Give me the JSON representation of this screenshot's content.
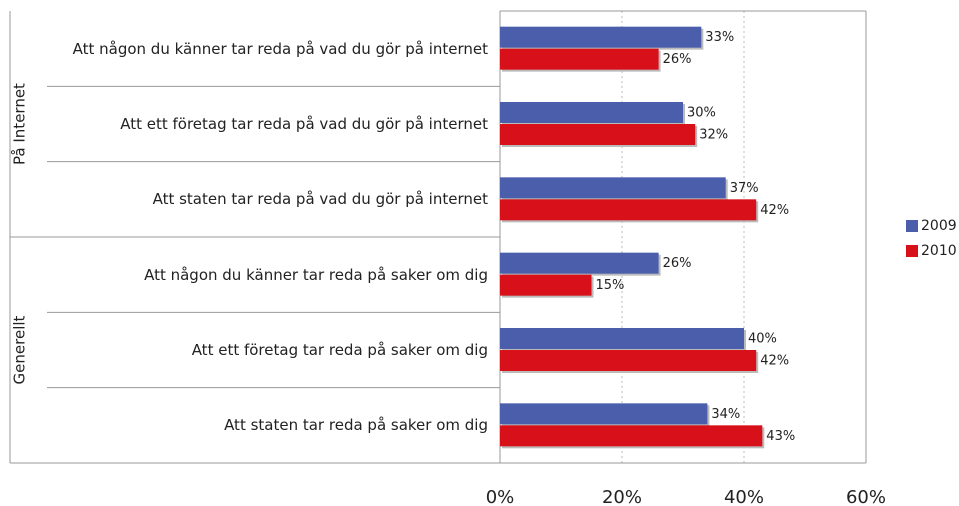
{
  "chart_data": {
    "type": "bar",
    "orientation": "horizontal",
    "groups": [
      "På Internet",
      "Generellt"
    ],
    "categories": [
      "Att någon du känner tar reda på vad du gör på internet",
      "Att ett företag tar reda på vad du gör på internet",
      "Att staten tar reda på vad du gör på internet",
      "Att någon du känner tar reda på saker om dig",
      "Att ett företag tar reda på saker om dig",
      "Att staten tar reda på saker om dig"
    ],
    "series": [
      {
        "name": "2009",
        "color": "#4a5eab",
        "values": [
          33,
          30,
          37,
          26,
          40,
          34
        ],
        "value_labels": [
          "33%",
          "30%",
          "37%",
          "26%",
          "40%",
          "34%"
        ]
      },
      {
        "name": "2010",
        "color": "#d7101a",
        "values": [
          26,
          32,
          42,
          15,
          42,
          43
        ],
        "value_labels": [
          "26%",
          "32%",
          "42%",
          "15%",
          "42%",
          "43%"
        ]
      }
    ],
    "xlim": [
      0,
      60
    ],
    "xticks": [
      {
        "value": 0,
        "label": "0%"
      },
      {
        "value": 20,
        "label": "20%"
      },
      {
        "value": 40,
        "label": "40%"
      },
      {
        "value": 60,
        "label": "60%"
      }
    ],
    "grid": true,
    "legend": "right"
  }
}
